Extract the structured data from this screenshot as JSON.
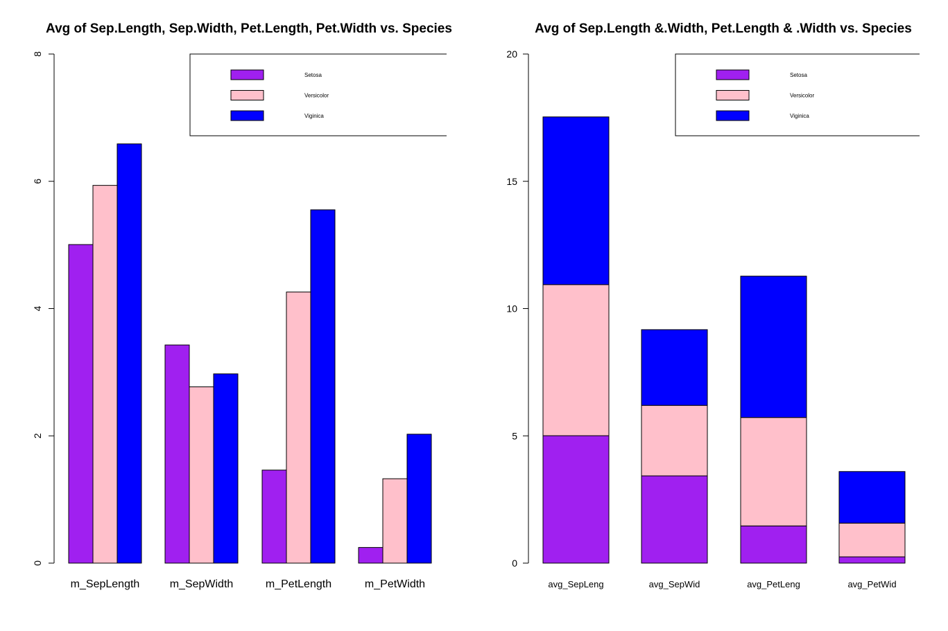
{
  "colors": {
    "Setosa": "#a020f0",
    "Versicolor": "#ffc0cb",
    "Viginica": "#0000ff"
  },
  "chart_data": [
    {
      "type": "bar",
      "mode": "grouped",
      "title": "Avg of Sep.Length, Sep.Width, Pet.Length, Pet.Width vs. Species",
      "xlabel": "",
      "ylabel": "",
      "ylim": [
        0,
        8
      ],
      "yticks": [
        0,
        2,
        4,
        6,
        8
      ],
      "categories": [
        "m_SepLength",
        "m_SepWidth",
        "m_PetLength",
        "m_PetWidth"
      ],
      "series": [
        {
          "name": "Setosa",
          "values": [
            5.006,
            3.428,
            1.462,
            0.246
          ]
        },
        {
          "name": "Versicolor",
          "values": [
            5.936,
            2.77,
            4.26,
            1.326
          ]
        },
        {
          "name": "Viginica",
          "values": [
            6.588,
            2.974,
            5.552,
            2.026
          ]
        }
      ],
      "legend": {
        "position": "top-right",
        "entries": [
          "Setosa",
          "Versicolor",
          "Viginica"
        ]
      },
      "grid": false
    },
    {
      "type": "bar",
      "mode": "stacked",
      "title": "Avg of Sep.Length &.Width, Pet.Length & .Width vs. Species",
      "xlabel": "",
      "ylabel": "",
      "ylim": [
        0,
        20
      ],
      "yticks": [
        0,
        5,
        10,
        15,
        20
      ],
      "categories": [
        "avg_SepLeng",
        "avg_SepWid",
        "avg_PetLeng",
        "avg_PetWid"
      ],
      "series": [
        {
          "name": "Setosa",
          "values": [
            5.006,
            3.428,
            1.462,
            0.246
          ]
        },
        {
          "name": "Versicolor",
          "values": [
            5.936,
            2.77,
            4.26,
            1.326
          ]
        },
        {
          "name": "Viginica",
          "values": [
            6.588,
            2.974,
            5.552,
            2.026
          ]
        }
      ],
      "legend": {
        "position": "top-right",
        "entries": [
          "Setosa",
          "Versicolor",
          "Viginica"
        ]
      },
      "grid": false
    }
  ]
}
